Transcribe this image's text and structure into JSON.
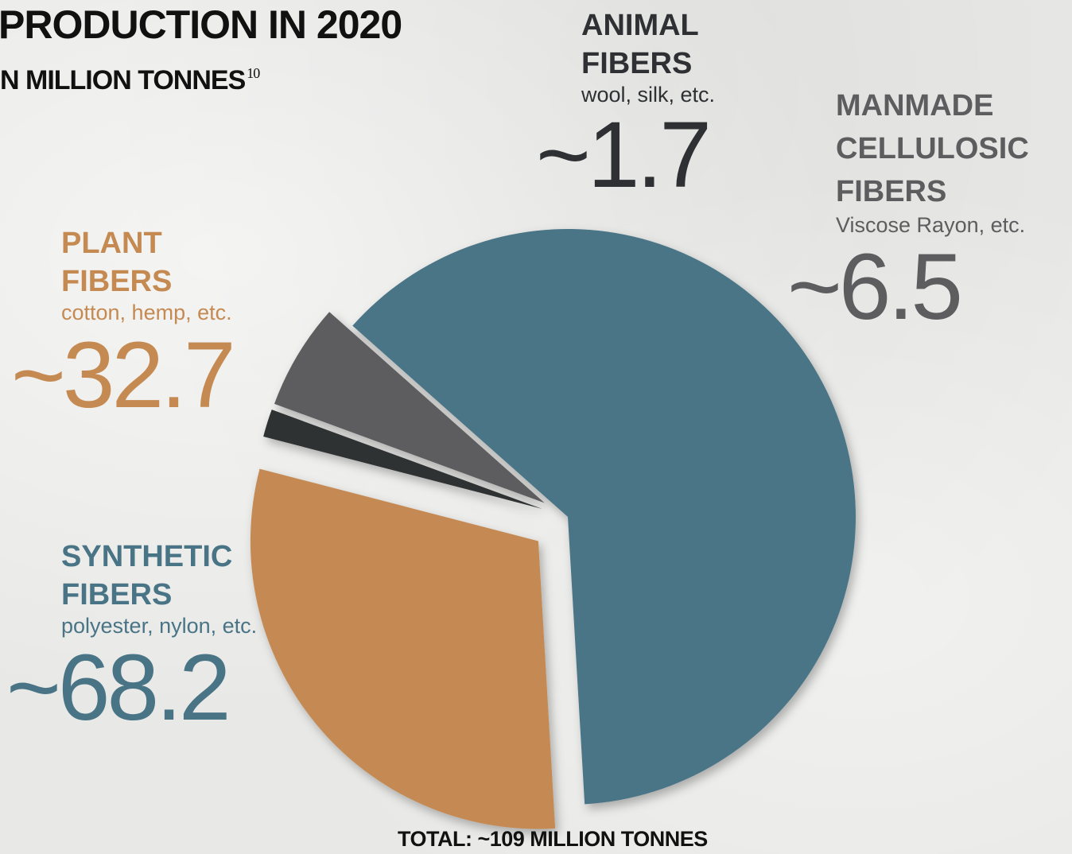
{
  "header": {
    "title": "PRODUCTION IN 2020",
    "subtitle": "N MILLION TONNES",
    "footnote": "10"
  },
  "total_label": "TOTAL: ~109 MILLION TONNES",
  "colors": {
    "synthetic": "#497486",
    "plant": "#c58a52",
    "animal": "#2e3033",
    "manmade": "#5d5d5f",
    "background": "#e9e9e7"
  },
  "labels": {
    "synthetic": {
      "line1": "SYNTHETIC",
      "line2": "FIBERS",
      "sub": "polyester, nylon, etc.",
      "value": "~68.2"
    },
    "plant": {
      "line1": "PLANT",
      "line2": "FIBERS",
      "sub": "cotton, hemp, etc.",
      "value": "~32.7"
    },
    "animal": {
      "line1": "ANIMAL",
      "line2": "FIBERS",
      "sub": "wool, silk, etc.",
      "value": "~1.7"
    },
    "manmade": {
      "line1": "MANMADE",
      "line2": "CELLULOSIC",
      "line3": "FIBERS",
      "sub": "Viscose Rayon, etc.",
      "value": "~6.5"
    }
  },
  "chart_data": {
    "type": "pie",
    "title": "PRODUCTION IN 2020",
    "unit": "N MILLION TONNES",
    "total": 109,
    "slices": [
      {
        "key": "synthetic",
        "label": "SYNTHETIC FIBERS",
        "value": 68.2,
        "color": "#497486"
      },
      {
        "key": "plant",
        "label": "PLANT FIBERS",
        "value": 32.7,
        "color": "#c58a52"
      },
      {
        "key": "animal",
        "label": "ANIMAL FIBERS",
        "value": 1.7,
        "color": "#2e3033"
      },
      {
        "key": "manmade",
        "label": "MANMADE CELLULOSIC FIBERS",
        "value": 6.5,
        "color": "#5d5d5f"
      }
    ],
    "exploded": true
  }
}
